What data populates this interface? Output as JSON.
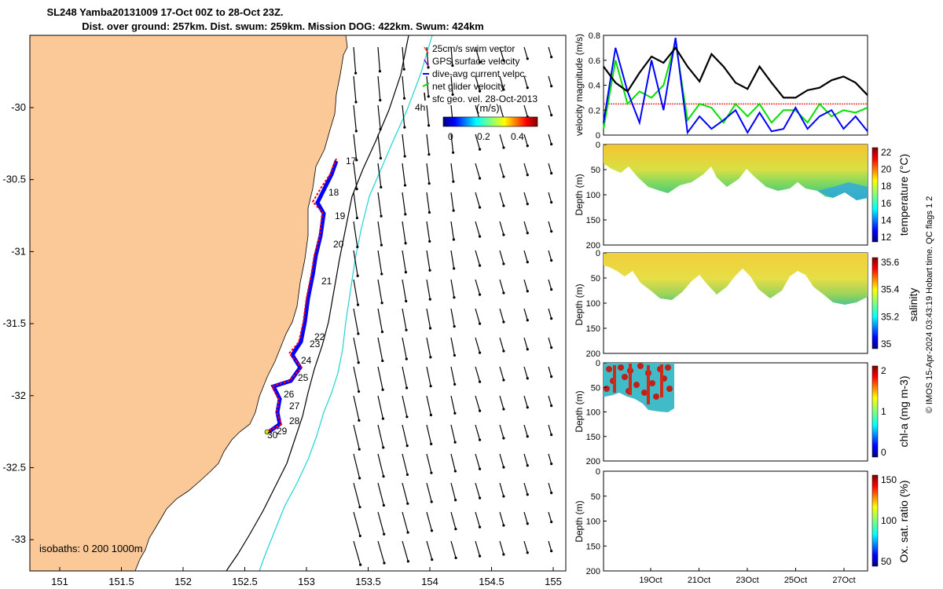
{
  "header": {
    "title_line1": "SL248 Yamba20131009 17-Oct 00Z to 28-Oct 23Z.",
    "title_line2": "Dist. over ground: 257km. Dist. swum: 259km. Mission DOG: 422km. Swum: 424km"
  },
  "colors": {
    "land": "#fbc898",
    "track": "#ff0000",
    "dive_current": "#0000ff",
    "net_velocity": "#00e000",
    "isobath_200": "#000000",
    "isobath_1000": "#22d3d3"
  },
  "map": {
    "legend": {
      "swim_vector": "25cm/s swim vector",
      "gps_velocity": "GPS surface velocity",
      "dive_current": "dive-avg current velpc.",
      "net_velocity": "net glider velocity",
      "sfc_geo": "sfc geo. vel. 28-Oct-2013"
    },
    "extra_label": "4h",
    "colorbar": {
      "title": "(m/s)",
      "ticks": [
        "0",
        "0.2",
        "0.4"
      ]
    },
    "isobaths_label": "isobaths: 0   200 1000m",
    "xticks": [
      "151",
      "151.5",
      "152",
      "152.5",
      "153",
      "153.5",
      "154",
      "154.5",
      "155"
    ],
    "yticks": [
      "-30",
      "-30.5",
      "-31",
      "-31.5",
      "-32",
      "-32.5",
      "-33"
    ],
    "day_labels": [
      "17",
      "18",
      "19",
      "20",
      "21",
      "22",
      "23",
      "24",
      "25",
      "26",
      "27",
      "28",
      "29",
      "30"
    ]
  },
  "chart_data": [
    {
      "type": "line",
      "ylabel": "velocity magnitude (m/s)",
      "ylim": [
        0,
        0.8
      ],
      "yticks": [
        "0",
        "0.2",
        "0.4",
        "0.6",
        "0.8"
      ],
      "x": [
        0,
        0.5,
        1,
        1.5,
        2,
        2.5,
        3,
        3.5,
        4,
        4.5,
        5,
        5.5,
        6,
        6.5,
        7,
        7.5,
        8,
        8.5,
        9,
        9.5,
        10,
        10.5,
        11
      ],
      "series": [
        {
          "color": "#000000",
          "values": [
            0.55,
            0.42,
            0.35,
            0.5,
            0.63,
            0.58,
            0.7,
            0.55,
            0.43,
            0.65,
            0.55,
            0.42,
            0.37,
            0.55,
            0.42,
            0.3,
            0.3,
            0.36,
            0.38,
            0.44,
            0.47,
            0.42,
            0.32
          ]
        },
        {
          "color": "#0000ff",
          "values": [
            0.1,
            0.7,
            0.35,
            0.1,
            0.6,
            0.2,
            0.78,
            0.02,
            0.15,
            0.05,
            0.12,
            0.2,
            0.02,
            0.18,
            0.03,
            0.05,
            0.22,
            0.05,
            0.15,
            0.2,
            0.05,
            0.15,
            0.03
          ]
        },
        {
          "color": "#00e000",
          "values": [
            0.05,
            0.6,
            0.25,
            0.35,
            0.3,
            0.4,
            0.75,
            0.12,
            0.25,
            0.22,
            0.1,
            0.25,
            0.15,
            0.25,
            0.1,
            0.2,
            0.2,
            0.1,
            0.25,
            0.15,
            0.2,
            0.18,
            0.22
          ]
        }
      ],
      "reference_line": 0.25
    },
    {
      "type": "heatmap",
      "ylabel": "Depth (m)",
      "colorbar_label": "temperature (°C)",
      "colorbar_ticks": [
        "22",
        "20",
        "18",
        "16",
        "14",
        "12"
      ],
      "ylim": [
        0,
        200
      ],
      "yticks": [
        "0",
        "50",
        "100",
        "150",
        "200"
      ]
    },
    {
      "type": "heatmap",
      "ylabel": "Depth (m)",
      "colorbar_label": "salinity",
      "colorbar_ticks": [
        "35.6",
        "35.4",
        "35.2",
        "35"
      ],
      "ylim": [
        0,
        200
      ],
      "yticks": [
        "0",
        "50",
        "100",
        "150",
        "200"
      ]
    },
    {
      "type": "heatmap",
      "ylabel": "Depth (m)",
      "colorbar_label": "chl-a (mg m-3)",
      "colorbar_ticks": [
        "2",
        "1",
        "0"
      ],
      "ylim": [
        0,
        200
      ],
      "yticks": [
        "0",
        "50",
        "100",
        "150",
        "200"
      ]
    },
    {
      "type": "heatmap",
      "ylabel": "Depth (m)",
      "colorbar_label": "Ox. sat. ratio (%)",
      "colorbar_ticks": [
        "150",
        "100",
        "50"
      ],
      "ylim": [
        0,
        200
      ],
      "yticks": [
        "0",
        "50",
        "100",
        "150",
        "200"
      ],
      "xticks": [
        "19Oct",
        "21Oct",
        "23Oct",
        "25Oct",
        "27Oct"
      ]
    }
  ],
  "footer": {
    "credit": "© IMOS 15-Apr-2024 03:43:19 Hobart time. QC flags 1  2"
  }
}
